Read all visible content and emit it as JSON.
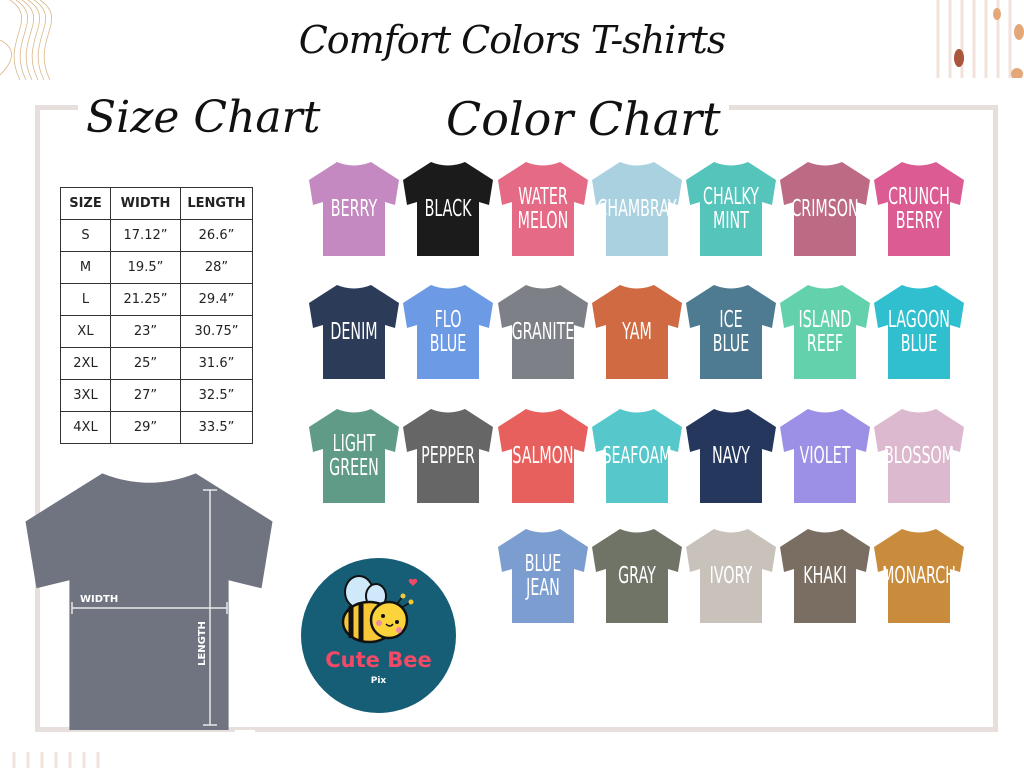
{
  "title": "Comfort Colors T-shirts",
  "size_chart": {
    "heading": "Size Chart",
    "columns": [
      "SIZE",
      "WIDTH",
      "LENGTH"
    ],
    "rows": [
      [
        "S",
        "17.12”",
        "26.6”"
      ],
      [
        "M",
        "19.5”",
        "28”"
      ],
      [
        "L",
        "21.25”",
        "29.4”"
      ],
      [
        "XL",
        "23”",
        "30.75”"
      ],
      [
        "2XL",
        "25”",
        "31.6”"
      ],
      [
        "3XL",
        "27”",
        "32.5”"
      ],
      [
        "4XL",
        "29”",
        "33.5”"
      ]
    ],
    "width_label": "WIDTH",
    "length_label": "LENGTH",
    "diagram_color": "#707480"
  },
  "color_chart": {
    "heading": "Color Chart",
    "colors": [
      {
        "name": "BERRY",
        "lines": [
          "BERRY"
        ],
        "hex": "#c489c0"
      },
      {
        "name": "BLACK",
        "lines": [
          "BLACK"
        ],
        "hex": "#1b1b1b"
      },
      {
        "name": "WATERMELON",
        "lines": [
          "WATER",
          "MELON"
        ],
        "hex": "#e46a86"
      },
      {
        "name": "CHAMBRAY",
        "lines": [
          "CHAMBRAY"
        ],
        "hex": "#a9d1df"
      },
      {
        "name": "CHALKY MINT",
        "lines": [
          "CHALKY",
          "MINT"
        ],
        "hex": "#55c4ba"
      },
      {
        "name": "CRIMSON",
        "lines": [
          "CRIMSON"
        ],
        "hex": "#bd6b84"
      },
      {
        "name": "CRUNCH BERRY",
        "lines": [
          "CRUNCH",
          "BERRY"
        ],
        "hex": "#dc5b93"
      },
      {
        "name": "DENIM",
        "lines": [
          "DENIM"
        ],
        "hex": "#2c3b58"
      },
      {
        "name": "FLO BLUE",
        "lines": [
          "FLO",
          "BLUE"
        ],
        "hex": "#6c9ae4"
      },
      {
        "name": "GRANITE",
        "lines": [
          "GRANITE"
        ],
        "hex": "#7d8086"
      },
      {
        "name": "YAM",
        "lines": [
          "YAM"
        ],
        "hex": "#cf6a43"
      },
      {
        "name": "ICE BLUE",
        "lines": [
          "ICE",
          "BLUE"
        ],
        "hex": "#4e7b92"
      },
      {
        "name": "ISLAND REEF",
        "lines": [
          "ISLAND",
          "REEF"
        ],
        "hex": "#64d1ad"
      },
      {
        "name": "LAGOON BLUE",
        "lines": [
          "LAGOON",
          "BLUE"
        ],
        "hex": "#2fbfcf"
      },
      {
        "name": "LIGHT GREEN",
        "lines": [
          "LIGHT",
          "GREEN"
        ],
        "hex": "#5f9b87"
      },
      {
        "name": "PEPPER",
        "lines": [
          "PEPPER"
        ],
        "hex": "#666666"
      },
      {
        "name": "SALMON",
        "lines": [
          "SALMON"
        ],
        "hex": "#e8605e"
      },
      {
        "name": "SEAFOAM",
        "lines": [
          "SEAFOAM"
        ],
        "hex": "#56c8cb"
      },
      {
        "name": "NAVY",
        "lines": [
          "NAVY"
        ],
        "hex": "#26375e"
      },
      {
        "name": "VIOLET",
        "lines": [
          "VIOLET"
        ],
        "hex": "#9c90e6"
      },
      {
        "name": "BLOSSOM",
        "lines": [
          "BLOSSOM"
        ],
        "hex": "#dcb9ce"
      },
      {
        "name": "BLUE JEAN",
        "lines": [
          "BLUE",
          "JEAN"
        ],
        "hex": "#7c9dd0"
      },
      {
        "name": "GRAY",
        "lines": [
          "GRAY"
        ],
        "hex": "#6f7467"
      },
      {
        "name": "IVORY",
        "lines": [
          "IVORY"
        ],
        "hex": "#c8c2bb"
      },
      {
        "name": "KHAKI",
        "lines": [
          "KHAKI"
        ],
        "hex": "#7a6e62"
      },
      {
        "name": "MONARCH",
        "lines": [
          "MONARCH"
        ],
        "hex": "#c98c3d"
      }
    ]
  },
  "logo": {
    "name": "Cute Bee",
    "sub": "Pix",
    "bg": "#155e76",
    "text_color": "#f24a66"
  }
}
